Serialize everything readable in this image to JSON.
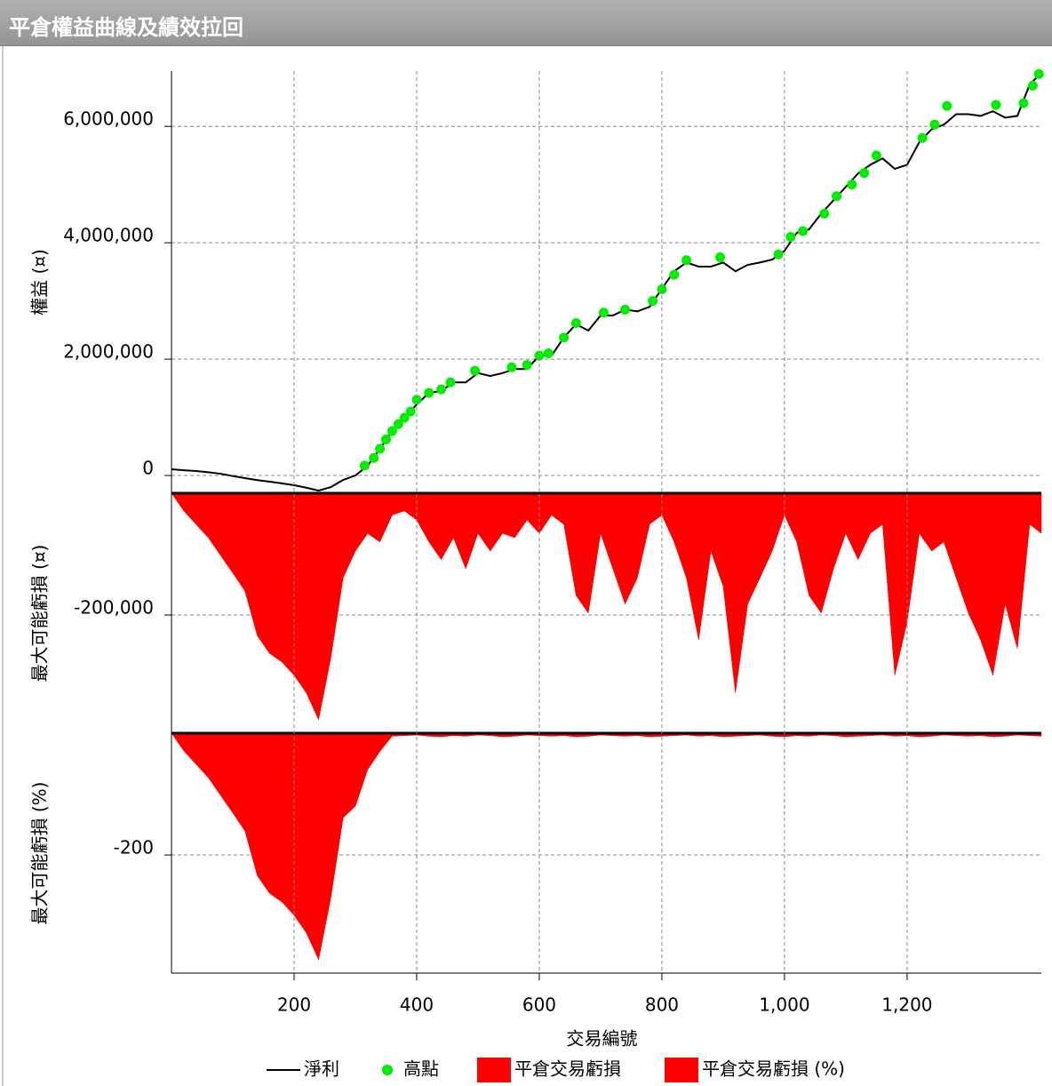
{
  "window_title": "平倉權益曲線及績效拉回",
  "chart_data": [
    {
      "type": "line",
      "y_label": "權益 (¤)",
      "xlim": [
        0,
        1419
      ],
      "ylim": [
        -305000,
        6950000
      ],
      "yticks": [
        0,
        {
          "value": 2000000,
          "label": "2,000,000"
        },
        {
          "value": 4000000,
          "label": "4,000,000"
        },
        {
          "value": 6000000,
          "label": "6,000,000"
        }
      ],
      "grid": true,
      "x": [
        0,
        20,
        40,
        60,
        80,
        100,
        120,
        140,
        160,
        180,
        200,
        220,
        240,
        260,
        280,
        300,
        320,
        340,
        360,
        380,
        400,
        420,
        440,
        460,
        480,
        500,
        520,
        540,
        560,
        580,
        600,
        620,
        640,
        660,
        680,
        700,
        720,
        740,
        760,
        780,
        800,
        820,
        840,
        860,
        880,
        900,
        920,
        940,
        960,
        980,
        1000,
        1020,
        1040,
        1060,
        1080,
        1100,
        1120,
        1140,
        1160,
        1180,
        1200,
        1220,
        1240,
        1260,
        1280,
        1300,
        1320,
        1340,
        1360,
        1380,
        1400,
        1419
      ],
      "series": [
        {
          "name": "淨利",
          "color": "#000000",
          "values": [
            107000,
            90000,
            76000,
            55000,
            30000,
            -10000,
            -46000,
            -80000,
            -107000,
            -135000,
            -168000,
            -210000,
            -260000,
            -200000,
            -76000,
            0,
            168000,
            458000,
            763000,
            992000,
            1220000,
            1420000,
            1450000,
            1600000,
            1600000,
            1760000,
            1710000,
            1760000,
            1830000,
            1830000,
            2060000,
            2060000,
            2370000,
            2600000,
            2490000,
            2750000,
            2750000,
            2850000,
            2820000,
            2900000,
            3210000,
            3510000,
            3660000,
            3590000,
            3590000,
            3660000,
            3510000,
            3620000,
            3660000,
            3710000,
            3860000,
            4170000,
            4230000,
            4500000,
            4730000,
            4960000,
            5190000,
            5340000,
            5450000,
            5270000,
            5340000,
            5730000,
            5950000,
            6030000,
            6210000,
            6210000,
            6180000,
            6260000,
            6150000,
            6180000,
            6720000,
            6920000
          ]
        },
        {
          "name": "高點",
          "color": "#00ee00",
          "type": "scatter",
          "x": [
            315,
            330,
            340,
            350,
            360,
            370,
            380,
            390,
            400,
            420,
            440,
            455,
            495,
            555,
            580,
            600,
            615,
            640,
            660,
            705,
            740,
            785,
            800,
            820,
            840,
            895,
            990,
            1010,
            1030,
            1065,
            1085,
            1110,
            1130,
            1150,
            1225,
            1245,
            1265,
            1345,
            1390,
            1405,
            1415
          ],
          "values": [
            170000,
            300000,
            458000,
            620000,
            763000,
            880000,
            992000,
            1100000,
            1300000,
            1420000,
            1480000,
            1600000,
            1800000,
            1860000,
            1900000,
            2060000,
            2100000,
            2370000,
            2620000,
            2800000,
            2850000,
            3000000,
            3200000,
            3450000,
            3700000,
            3750000,
            3800000,
            4100000,
            4200000,
            4500000,
            4800000,
            5000000,
            5200000,
            5500000,
            5800000,
            6030000,
            6350000,
            6370000,
            6400000,
            6700000,
            6900000
          ]
        }
      ]
    },
    {
      "type": "area",
      "y_label": "最大可能虧損 (¤)",
      "xlim": [
        0,
        1419
      ],
      "ylim": [
        -394000,
        0
      ],
      "yticks": [
        {
          "value": -200000,
          "label": "-200,000"
        }
      ],
      "grid": true,
      "x": [
        0,
        20,
        40,
        60,
        80,
        100,
        120,
        140,
        160,
        180,
        200,
        220,
        240,
        260,
        280,
        300,
        320,
        340,
        360,
        380,
        400,
        420,
        440,
        460,
        480,
        500,
        520,
        540,
        560,
        580,
        600,
        620,
        640,
        660,
        680,
        700,
        720,
        740,
        760,
        780,
        800,
        820,
        840,
        860,
        880,
        900,
        920,
        940,
        960,
        980,
        1000,
        1020,
        1040,
        1060,
        1080,
        1100,
        1120,
        1140,
        1160,
        1180,
        1200,
        1220,
        1240,
        1260,
        1280,
        1300,
        1320,
        1340,
        1360,
        1380,
        1400,
        1419
      ],
      "series": [
        {
          "name": "平倉交易虧損",
          "color": "#ff0000",
          "values": [
            0,
            -29000,
            -51000,
            -73000,
            -102000,
            -131000,
            -161000,
            -234000,
            -263000,
            -277000,
            -299000,
            -328000,
            -372000,
            -270000,
            -139000,
            -95000,
            -66000,
            -80000,
            -36000,
            -29000,
            -44000,
            -80000,
            -109000,
            -73000,
            -124000,
            -66000,
            -95000,
            -66000,
            -73000,
            -44000,
            -66000,
            -36000,
            -51000,
            -168000,
            -197000,
            -66000,
            -124000,
            -182000,
            -139000,
            -51000,
            -36000,
            -80000,
            -139000,
            -241000,
            -95000,
            -153000,
            -328000,
            -182000,
            -139000,
            -95000,
            -36000,
            -80000,
            -168000,
            -197000,
            -124000,
            -66000,
            -109000,
            -66000,
            -51000,
            -299000,
            -212000,
            -66000,
            -95000,
            -80000,
            -139000,
            -197000,
            -241000,
            -299000,
            -182000,
            -255000,
            -51000,
            -66000
          ]
        }
      ]
    },
    {
      "type": "area",
      "y_label": "最大可能虧損 (%)",
      "x_label": "交易編號",
      "xlim": [
        0,
        1419
      ],
      "ylim": [
        -394,
        0
      ],
      "xticks": [
        200,
        400,
        600,
        800,
        {
          "value": 1000,
          "label": "1,000"
        },
        {
          "value": 1200,
          "label": "1,200"
        }
      ],
      "yticks": [
        -200
      ],
      "grid": true,
      "x": [
        0,
        20,
        40,
        60,
        80,
        100,
        120,
        140,
        160,
        180,
        200,
        220,
        240,
        260,
        280,
        300,
        320,
        340,
        360,
        380,
        400,
        420,
        440,
        460,
        480,
        500,
        520,
        540,
        560,
        580,
        600,
        620,
        640,
        660,
        680,
        700,
        720,
        740,
        760,
        780,
        800,
        820,
        840,
        860,
        880,
        900,
        920,
        940,
        960,
        980,
        1000,
        1020,
        1040,
        1060,
        1080,
        1100,
        1120,
        1140,
        1160,
        1180,
        1200,
        1220,
        1240,
        1260,
        1280,
        1300,
        1320,
        1340,
        1360,
        1380,
        1400,
        1419
      ],
      "series": [
        {
          "name": "平倉交易虧損 (%)",
          "color": "#ff0000",
          "values": [
            0,
            -29,
            -51,
            -73,
            -102,
            -131,
            -161,
            -234,
            -263,
            -277,
            -299,
            -328,
            -372,
            -270,
            -139,
            -120,
            -60,
            -30,
            -5,
            -4,
            -3,
            -5,
            -6,
            -4,
            -5,
            -3,
            -4,
            -6,
            -5,
            -3,
            -4,
            -5,
            -4,
            -6,
            -5,
            -3,
            -4,
            -5,
            -4,
            -6,
            -5,
            -4,
            -3,
            -5,
            -4,
            -6,
            -5,
            -4,
            -3,
            -5,
            -6,
            -4,
            -5,
            -3,
            -4,
            -6,
            -5,
            -4,
            -3,
            -5,
            -4,
            -6,
            -5,
            -3,
            -4,
            -5,
            -4,
            -6,
            -5,
            -3,
            -4,
            -5
          ]
        }
      ]
    }
  ]
}
